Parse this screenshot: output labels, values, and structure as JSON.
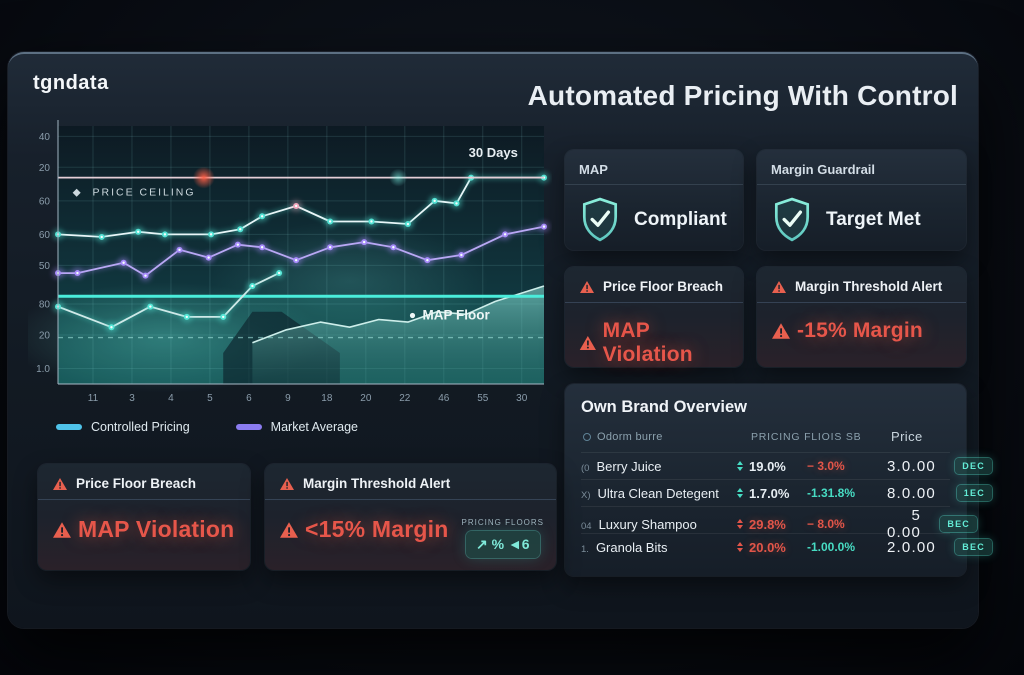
{
  "brand": {
    "logo": "tgndata"
  },
  "header": {
    "title": "Automated Pricing With Control"
  },
  "colors": {
    "accent_cyan": "#4fc3ea",
    "accent_purple": "#8b7cf0",
    "accent_teal": "#46e8d6",
    "alert_red": "#e6564a",
    "ceiling_pink": "#e39aac"
  },
  "chart_data": {
    "type": "line",
    "x_tick_labels": [
      "11",
      "3",
      "4",
      "5",
      "6",
      "9",
      "18",
      "20",
      "22",
      "46",
      "55",
      "30"
    ],
    "y_tick_labels": [
      "40",
      "20",
      "60",
      "60",
      "50",
      "80",
      "20",
      "1.0"
    ],
    "y_tick_positions": [
      96,
      84,
      71,
      58,
      46,
      31,
      19,
      6
    ],
    "reference_lines": {
      "price_ceiling": 80,
      "map_floor": 34,
      "dashed_baseline": 18
    },
    "annotations": {
      "price_ceiling": {
        "text": "PRICE CEILING",
        "f": 0.03,
        "v": 73
      },
      "duration": {
        "text": "30 Days",
        "f": 0.845,
        "v": 88
      },
      "map_floor": {
        "text": "MAP Floor",
        "f": 0.75,
        "v": 25
      }
    },
    "legend": [
      {
        "label": "Controlled Pricing",
        "color": "#4fc3ea"
      },
      {
        "label": "Market Average",
        "color": "#8b7cf0"
      }
    ],
    "series": [
      {
        "name": "Backdrop",
        "type": "backdrop",
        "color": "rgba(9,22,32,0.55)",
        "x_frac": [
          0.34,
          0.4,
          0.46,
          0.52,
          0.58
        ],
        "values": [
          12,
          28,
          28,
          20,
          12
        ]
      },
      {
        "name": "Volume Area",
        "type": "area",
        "color": "#5ad2c6",
        "x_frac": [
          0.4,
          0.47,
          0.54,
          0.6,
          0.66,
          0.72,
          0.78,
          0.84,
          0.9,
          1
        ],
        "values": [
          16,
          21,
          24,
          22,
          25,
          24,
          28,
          27,
          32,
          38
        ]
      },
      {
        "name": "Floor Tracker",
        "type": "line",
        "color": "#cfe9e8",
        "dot_color": "#55e6d6",
        "x_frac": [
          0,
          0.11,
          0.19,
          0.265,
          0.34,
          0.4,
          0.455
        ],
        "values": [
          30,
          22,
          30,
          26,
          26,
          38,
          43
        ]
      },
      {
        "name": "Market Average",
        "type": "line",
        "color": "#b9a8f4",
        "dot_color": "#a78bfa",
        "x_frac": [
          0,
          0.04,
          0.135,
          0.18,
          0.25,
          0.31,
          0.37,
          0.42,
          0.49,
          0.56,
          0.63,
          0.69,
          0.76,
          0.83,
          0.92,
          1
        ],
        "values": [
          43,
          43,
          47,
          42,
          52,
          49,
          54,
          53,
          48,
          53,
          55,
          53,
          48,
          50,
          58,
          61
        ]
      },
      {
        "name": "Controlled Pricing",
        "type": "line",
        "color": "#e9f6f8",
        "dot_color": "#53e2d4",
        "x_frac": [
          0,
          0.09,
          0.165,
          0.22,
          0.315,
          0.375,
          0.42,
          0.49,
          0.56,
          0.645,
          0.72,
          0.775,
          0.82,
          0.85,
          1
        ],
        "values": [
          58,
          57,
          59,
          58,
          58,
          60,
          65,
          69,
          63,
          63,
          62,
          71,
          70,
          80,
          80
        ]
      }
    ],
    "highlight_point": {
      "series": 4,
      "index": 7,
      "color": "#f2a8bd"
    }
  },
  "status_cards": [
    {
      "title": "MAP",
      "status": "Compliant"
    },
    {
      "title": "Margin Guardrail",
      "status": "Target Met"
    }
  ],
  "right_alerts": [
    {
      "title": "Price Floor Breach",
      "message": "MAP Violation"
    },
    {
      "title": "Margin Threshold Alert",
      "message": "-15% Margin"
    }
  ],
  "bottom_alerts": [
    {
      "title": "Price Floor Breach",
      "message": "MAP Violation"
    },
    {
      "title": "Margin Threshold Alert",
      "message": "<15% Margin",
      "chip": {
        "label": "PRICING FLOORS",
        "text": "↗  %  ◄6"
      }
    }
  ],
  "table": {
    "title": "Own Brand Overview",
    "columns": [
      "Odorm burre",
      "Pricing Fliois SB",
      "Price"
    ],
    "rows": [
      {
        "id": "(0",
        "product": "Berry Juice",
        "trend": "teal",
        "pct1": "19.0%",
        "pct1_color": "white",
        "pct2": "− 3.0%",
        "pct2_color": "red",
        "price": "3.0.00",
        "badge": "DEC"
      },
      {
        "id": "X)",
        "product": "Ultra Clean Detegent",
        "trend": "teal",
        "pct1": "1.7.0%",
        "pct1_color": "white",
        "pct2": "-1.31.8%",
        "pct2_color": "teal",
        "price": "8.0.00",
        "badge": "1EC"
      },
      {
        "id": "04",
        "product": "Luxury Shampoo",
        "trend": "red",
        "pct1": "29.8%",
        "pct1_color": "red",
        "pct2": "− 8.0%",
        "pct2_color": "red",
        "price": "5 0.00",
        "badge": "BEC"
      },
      {
        "id": "1.",
        "product": "Granola Bits",
        "trend": "red",
        "pct1": "20.0%",
        "pct1_color": "red",
        "pct2": "-1.00.0%",
        "pct2_color": "teal",
        "price": "2.0.00",
        "badge": "BEC"
      }
    ]
  }
}
